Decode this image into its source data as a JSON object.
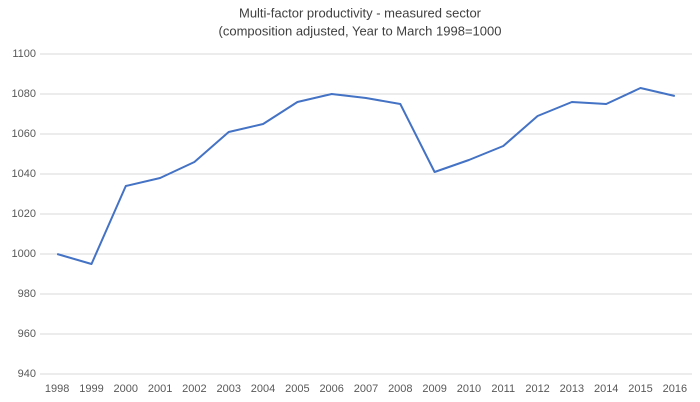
{
  "chart_data": {
    "type": "line",
    "title": "Multi-factor productivity -  measured sector",
    "subtitle": "(composition adjusted, Year to March 1998=1000",
    "categories": [
      "1998",
      "1999",
      "2000",
      "2001",
      "2002",
      "2003",
      "2004",
      "2005",
      "2006",
      "2007",
      "2008",
      "2009",
      "2010",
      "2011",
      "2012",
      "2013",
      "2014",
      "2015",
      "2016"
    ],
    "values": [
      1000,
      995,
      1034,
      1038,
      1046,
      1061,
      1065,
      1076,
      1080,
      1078,
      1075,
      1041,
      1047,
      1054,
      1069,
      1076,
      1075,
      1083,
      1079
    ],
    "color": "#4472c4",
    "ylim": [
      940,
      1100
    ],
    "yticks": [
      940,
      960,
      980,
      1000,
      1020,
      1040,
      1060,
      1080,
      1100
    ],
    "grid": true
  }
}
